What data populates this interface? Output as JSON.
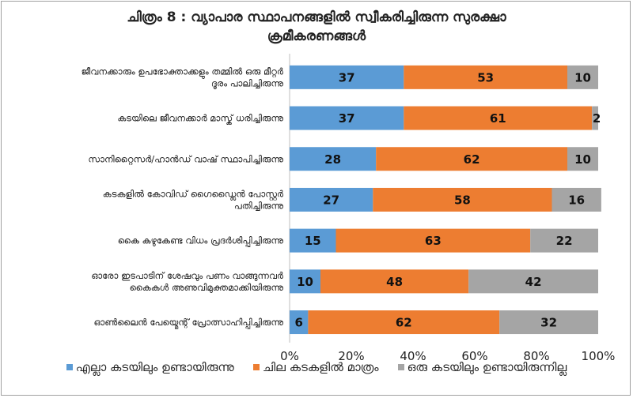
{
  "chart_data": {
    "type": "bar",
    "orientation": "horizontal",
    "stacked": "percent",
    "title_lines": [
      "ചിത്രം 8 : വ്യാപാര സ്ഥാപനങ്ങളിൽ സ്വീകരിച്ചിരുന്ന സുരക്ഷാ",
      "ക്രമീകരണങ്ങൾ"
    ],
    "categories": [
      [
        "ജീവനക്കാരും ഉപഭോക്താക്കളും തമ്മിൽ ഒരു മീറ്റർ",
        "ദൂരം പാലിച്ചിരുന്നു"
      ],
      [
        "കടയിലെ ജീവനക്കാർ മാസ്ക് ധരിച്ചിരുന്നു"
      ],
      [
        "സാനിറ്റൈസർ/ഹാൻഡ് വാഷ് സ്ഥാപിച്ചിരുന്നു"
      ],
      [
        "കടകളിൽ കോവിഡ് ഗൈഡ്ലൈൻ പോസ്റ്റർ",
        "പതിച്ചിരുന്നു"
      ],
      [
        "കൈ കഴുകേണ്ട വിധം പ്രദർശിപ്പിച്ചിരുന്നു"
      ],
      [
        "ഓരോ ഇടപാടിന് ശേഷവും പണം വാങ്ങുന്നവർ",
        "കൈകൾ അണുവിമുക്തമാക്കിയിരുന്നു"
      ],
      [
        "ഓൺലൈൻ പേയ്മെന്റ് പ്രോത്സാഹിപ്പിച്ചിരുന്നു"
      ]
    ],
    "series": [
      {
        "name": "എല്ലാ കടയിലും ഉണ്ടായിരുന്നു",
        "color": "#5b9bd5",
        "values": [
          37,
          37,
          28,
          27,
          15,
          10,
          6
        ]
      },
      {
        "name": "ചില കടകളിൽ മാത്രം",
        "color": "#ed7d31",
        "values": [
          53,
          61,
          62,
          58,
          63,
          48,
          62
        ]
      },
      {
        "name": "ഒരു കടയിലും ഉണ്ടായിരുന്നില്ല",
        "color": "#a5a5a5",
        "values": [
          10,
          2,
          10,
          16,
          22,
          42,
          32
        ]
      }
    ],
    "xticks": [
      "0%",
      "20%",
      "40%",
      "60%",
      "80%",
      "100%"
    ],
    "xlim": [
      0,
      100
    ],
    "grid": false,
    "legend_position": "bottom"
  }
}
